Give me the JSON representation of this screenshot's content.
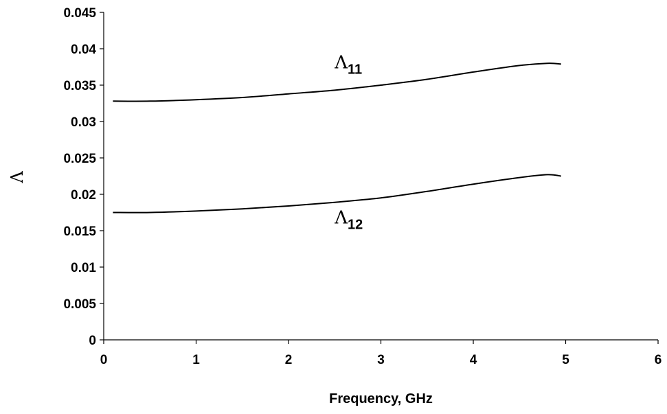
{
  "chart_data": {
    "type": "line",
    "xlabel": "Frequency, GHz",
    "ylabel": "Λ",
    "xlim": [
      0,
      6
    ],
    "ylim": [
      0,
      0.045
    ],
    "x_ticks": [
      "0",
      "1",
      "2",
      "3",
      "4",
      "5",
      "6"
    ],
    "y_ticks": [
      "0",
      "0.005",
      "0.01",
      "0.015",
      "0.02",
      "0.025",
      "0.03",
      "0.035",
      "0.04",
      "0.045"
    ],
    "grid": false,
    "series": [
      {
        "label_main": "Λ",
        "label_sub": "11",
        "x": [
          0.1,
          0.5,
          1.0,
          1.5,
          2.0,
          2.5,
          3.0,
          3.5,
          4.0,
          4.5,
          4.8,
          4.95
        ],
        "y": [
          0.0328,
          0.0328,
          0.033,
          0.0333,
          0.0338,
          0.0343,
          0.035,
          0.0358,
          0.0368,
          0.0377,
          0.038,
          0.0379
        ]
      },
      {
        "label_main": "Λ",
        "label_sub": "12",
        "x": [
          0.1,
          0.5,
          1.0,
          1.5,
          2.0,
          2.5,
          3.0,
          3.5,
          4.0,
          4.5,
          4.8,
          4.95
        ],
        "y": [
          0.0175,
          0.0175,
          0.0177,
          0.018,
          0.0184,
          0.0189,
          0.0195,
          0.0204,
          0.0214,
          0.0223,
          0.0227,
          0.0225
        ]
      }
    ]
  }
}
